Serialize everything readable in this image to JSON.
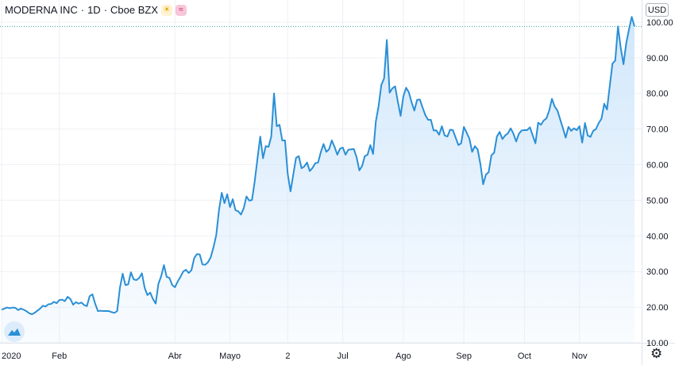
{
  "header": {
    "symbol": "MODERNA INC",
    "separator1": "·",
    "interval": "1D",
    "separator2": "·",
    "exchange": "Cboe BZX"
  },
  "icons": {
    "market_status": "sun-icon",
    "indicator": "wave-icon",
    "logo": "tradingview-logo-icon",
    "settings": "gear-icon"
  },
  "currency": "USD",
  "colors": {
    "line": "#2a8fd6",
    "fill_top": "#cfe6fb",
    "dotted_line": "#3aa3a3",
    "text": "#131722"
  },
  "chart_data": {
    "type": "area",
    "ylim": [
      10,
      104
    ],
    "yticks": [
      10,
      20,
      30,
      40,
      50,
      60,
      70,
      80,
      90,
      100
    ],
    "ytick_labels": [
      "10.00",
      "20.00",
      "30.00",
      "40.00",
      "50.00",
      "60.00",
      "70.00",
      "80.00",
      "90.00",
      "100.00"
    ],
    "xtick_labels": [
      "2020",
      "Feb",
      "Abr",
      "Mayo",
      "2",
      "Jul",
      "Ago",
      "Sep",
      "Oct",
      "Nov"
    ],
    "xtick_index": [
      0,
      21,
      63,
      83,
      104,
      124,
      146,
      168,
      190,
      210
    ],
    "price_line": 98.8,
    "grid": true,
    "values": [
      19.3,
      19.6,
      19.9,
      19.7,
      19.9,
      19.8,
      19.2,
      19.6,
      19.3,
      18.9,
      18.3,
      18.0,
      18.4,
      19.0,
      19.6,
      20.4,
      20.2,
      20.8,
      20.9,
      21.5,
      21.1,
      22.0,
      22.1,
      21.7,
      22.9,
      22.3,
      20.7,
      21.4,
      21.0,
      21.3,
      20.6,
      20.3,
      23.1,
      23.6,
      21.0,
      18.9,
      19.0,
      18.9,
      18.9,
      18.9,
      18.6,
      18.4,
      18.9,
      25.4,
      29.4,
      26.2,
      26.4,
      29.8,
      27.8,
      27.6,
      28.2,
      29.5,
      25.4,
      23.4,
      24.1,
      22.3,
      21.0,
      26.6,
      28.7,
      31.8,
      28.5,
      28.2,
      26.2,
      25.6,
      27.2,
      28.5,
      30.0,
      30.5,
      29.6,
      30.4,
      33.8,
      34.9,
      34.8,
      32.0,
      31.9,
      32.6,
      34.0,
      36.8,
      40.2,
      47.2,
      52.1,
      49.2,
      51.7,
      48.1,
      50.3,
      47.2,
      46.9,
      46.0,
      47.8,
      51.1,
      49.9,
      50.1,
      55.4,
      61.8,
      67.9,
      61.8,
      65.2,
      65.0,
      67.9,
      80.0,
      70.8,
      71.2,
      66.8,
      66.8,
      57.3,
      52.5,
      57.2,
      61.9,
      62.4,
      59.0,
      59.5,
      60.6,
      58.2,
      59.1,
      60.4,
      60.6,
      63.5,
      65.8,
      63.6,
      64.3,
      66.8,
      65.0,
      62.8,
      64.5,
      64.8,
      62.8,
      64.2,
      64.3,
      64.4,
      62.1,
      58.4,
      59.6,
      62.4,
      62.8,
      65.5,
      63.0,
      72.1,
      76.4,
      82.4,
      84.2,
      95.0,
      80.2,
      81.4,
      82.0,
      77.7,
      73.7,
      79.2,
      81.6,
      80.3,
      77.5,
      75.2,
      78.2,
      78.3,
      76.0,
      73.9,
      72.6,
      72.6,
      69.6,
      69.6,
      68.4,
      70.8,
      68.2,
      67.9,
      69.8,
      69.7,
      67.6,
      65.5,
      66.0,
      70.6,
      69.0,
      67.3,
      63.6,
      65.2,
      64.3,
      60.2,
      54.5,
      57.2,
      57.9,
      62.6,
      63.4,
      67.9,
      69.2,
      67.2,
      68.2,
      68.8,
      70.2,
      68.7,
      66.5,
      68.7,
      69.6,
      69.7,
      69.7,
      70.5,
      68.2,
      66.0,
      71.8,
      71.2,
      72.4,
      73.0,
      75.2,
      78.5,
      76.3,
      75.2,
      72.7,
      70.2,
      67.6,
      70.6,
      69.5,
      70.2,
      69.7,
      70.8,
      66.2,
      71.7,
      68.2,
      67.8,
      69.5,
      70.0,
      71.7,
      72.9,
      77.1,
      75.5,
      82.0,
      88.4,
      89.2,
      98.8,
      92.8,
      88.2,
      94.1,
      98.0,
      101.5,
      98.8
    ]
  }
}
